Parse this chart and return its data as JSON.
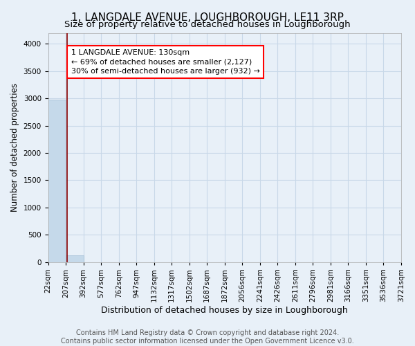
{
  "title": "1, LANGDALE AVENUE, LOUGHBOROUGH, LE11 3RP",
  "subtitle": "Size of property relative to detached houses in Loughborough",
  "xlabel": "Distribution of detached houses by size in Loughborough",
  "ylabel": "Number of detached properties",
  "bar_values": [
    2980,
    120,
    0,
    0,
    0,
    0,
    0,
    0,
    0,
    0,
    0,
    0,
    0,
    0,
    0,
    0,
    0,
    0,
    0,
    0
  ],
  "x_labels": [
    "22sqm",
    "207sqm",
    "392sqm",
    "577sqm",
    "762sqm",
    "947sqm",
    "1132sqm",
    "1317sqm",
    "1502sqm",
    "1687sqm",
    "1872sqm",
    "2056sqm",
    "2241sqm",
    "2426sqm",
    "2611sqm",
    "2796sqm",
    "2981sqm",
    "3166sqm",
    "3351sqm",
    "3536sqm",
    "3721sqm"
  ],
  "bar_color": "#c5d9ea",
  "bar_edge_color": "#a0bdd4",
  "grid_color": "#c8d8e8",
  "bg_color": "#e8f0f8",
  "red_line_x": 0.56,
  "annotation_text": "1 LANGDALE AVENUE: 130sqm\n← 69% of detached houses are smaller (2,127)\n30% of semi-detached houses are larger (932) →",
  "ylim": [
    0,
    4200
  ],
  "yticks": [
    0,
    500,
    1000,
    1500,
    2000,
    2500,
    3000,
    3500,
    4000
  ],
  "footer_line1": "Contains HM Land Registry data © Crown copyright and database right 2024.",
  "footer_line2": "Contains public sector information licensed under the Open Government Licence v3.0.",
  "title_fontsize": 11,
  "subtitle_fontsize": 9.5,
  "xlabel_fontsize": 9,
  "ylabel_fontsize": 8.5,
  "tick_fontsize": 7.5,
  "footer_fontsize": 7,
  "annot_fontsize": 8
}
